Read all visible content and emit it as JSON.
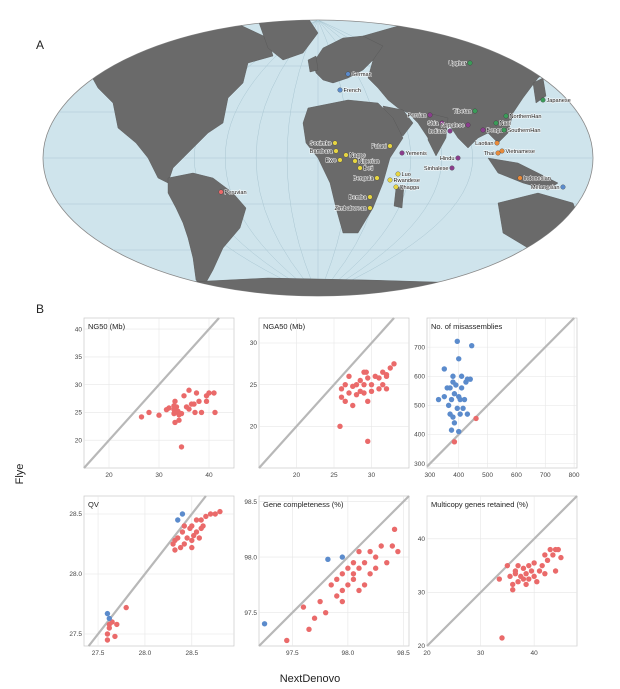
{
  "panel_labels": {
    "a": "A",
    "b": "B"
  },
  "axis_titles": {
    "y": "Flye",
    "x": "NextDenovo"
  },
  "colors": {
    "ocean": "#cfe4ec",
    "land": "#6a6a6a",
    "line": "#b5b5b5",
    "red": "#ea6a6a",
    "blue": "#5b8bcc",
    "yellow": "#e6d542",
    "green": "#3a9b58",
    "purple": "#8a3d8c",
    "orange": "#e88a3a",
    "diag": "#b8b8b8",
    "grid": "#e6e6e6"
  },
  "map_labels": [
    {
      "name": "German",
      "color": "blue"
    },
    {
      "name": "French",
      "color": "blue"
    },
    {
      "name": "Uyghur",
      "color": "green"
    },
    {
      "name": "Japanese",
      "color": "green"
    },
    {
      "name": "Tibetan",
      "color": "green"
    },
    {
      "name": "NorthernHan",
      "color": "green"
    },
    {
      "name": "Persian",
      "color": "purple"
    },
    {
      "name": "Shia",
      "color": "purple"
    },
    {
      "name": "Naxi",
      "color": "green"
    },
    {
      "name": "Nepalese",
      "color": "purple"
    },
    {
      "name": "Bengali",
      "color": "purple"
    },
    {
      "name": "SouthernHan",
      "color": "green"
    },
    {
      "name": "Indians",
      "color": "purple"
    },
    {
      "name": "Sonimke",
      "color": "yellow"
    },
    {
      "name": "Fulani",
      "color": "yellow"
    },
    {
      "name": "Yemenis",
      "color": "purple"
    },
    {
      "name": "Laotian",
      "color": "orange"
    },
    {
      "name": "Vietnamese",
      "color": "orange"
    },
    {
      "name": "Bambara",
      "color": "yellow"
    },
    {
      "name": "Nagos",
      "color": "yellow"
    },
    {
      "name": "Hindu",
      "color": "purple"
    },
    {
      "name": "Thai",
      "color": "orange"
    },
    {
      "name": "Ewe",
      "color": "yellow"
    },
    {
      "name": "Nigerian",
      "color": "yellow"
    },
    {
      "name": "Beti",
      "color": "yellow"
    },
    {
      "name": "Sinhalese",
      "color": "purple"
    },
    {
      "name": "Bengala",
      "color": "yellow"
    },
    {
      "name": "Luo",
      "color": "yellow"
    },
    {
      "name": "Rwandese",
      "color": "yellow"
    },
    {
      "name": "Chagga",
      "color": "yellow"
    },
    {
      "name": "Indonesian",
      "color": "orange"
    },
    {
      "name": "Peruvian",
      "color": "red"
    },
    {
      "name": "Melanesian",
      "color": "blue"
    },
    {
      "name": "Bemba",
      "color": "yellow"
    },
    {
      "name": "Zimbabwean",
      "color": "yellow"
    }
  ],
  "chart_data": [
    {
      "type": "scatter",
      "title": "NG50 (Mb)",
      "xlim": [
        15,
        45
      ],
      "ylim": [
        15,
        42
      ],
      "xticks": [
        "20",
        "30",
        "40"
      ],
      "yticks": [
        "20",
        "25",
        "30",
        "35",
        "40"
      ],
      "series": [
        {
          "color": "red",
          "points": [
            [
              26.5,
              24.2
            ],
            [
              28,
              25
            ],
            [
              30,
              24.5
            ],
            [
              31.5,
              25.5
            ],
            [
              32,
              25.8
            ],
            [
              33,
              25.5
            ],
            [
              33,
              26.2
            ],
            [
              33,
              24.8
            ],
            [
              33.2,
              27
            ],
            [
              33.5,
              26
            ],
            [
              33.8,
              25.2
            ],
            [
              34,
              24.6
            ],
            [
              34,
              23.6
            ],
            [
              34.5,
              24.8
            ],
            [
              35,
              28
            ],
            [
              35.5,
              26
            ],
            [
              36,
              29
            ],
            [
              36,
              25.6
            ],
            [
              36.5,
              26.5
            ],
            [
              37,
              26.5
            ],
            [
              37.2,
              25
            ],
            [
              37.5,
              28.5
            ],
            [
              38,
              27
            ],
            [
              38.5,
              25
            ],
            [
              39.5,
              28
            ],
            [
              39.5,
              27
            ],
            [
              40,
              28.5
            ],
            [
              41,
              28.5
            ],
            [
              41.2,
              25
            ],
            [
              34.5,
              18.8
            ],
            [
              33.2,
              23.2
            ]
          ]
        }
      ]
    },
    {
      "type": "scatter",
      "title": "NGA50 (Mb)",
      "xlim": [
        15,
        35
      ],
      "ylim": [
        15,
        33
      ],
      "xticks": [
        "20",
        "25",
        "30"
      ],
      "yticks": [
        "20",
        "25",
        "30"
      ],
      "series": [
        {
          "color": "red",
          "points": [
            [
              25.8,
              20
            ],
            [
              26,
              23.5
            ],
            [
              26,
              24.5
            ],
            [
              26.5,
              25
            ],
            [
              26.5,
              23
            ],
            [
              27,
              24
            ],
            [
              27,
              26
            ],
            [
              27.5,
              22.5
            ],
            [
              27.5,
              24.8
            ],
            [
              28,
              25
            ],
            [
              28,
              23.8
            ],
            [
              28.5,
              25.5
            ],
            [
              28.5,
              24.2
            ],
            [
              29,
              26.5
            ],
            [
              29,
              24
            ],
            [
              29,
              25
            ],
            [
              29.3,
              26.5
            ],
            [
              29.5,
              25.8
            ],
            [
              29.5,
              23
            ],
            [
              30,
              25
            ],
            [
              30,
              24.2
            ],
            [
              30.5,
              26
            ],
            [
              31,
              24.5
            ],
            [
              31,
              25.8
            ],
            [
              31.5,
              26.5
            ],
            [
              31.5,
              25
            ],
            [
              32,
              26.2
            ],
            [
              32,
              24.5
            ],
            [
              32.5,
              27
            ],
            [
              33,
              27.5
            ],
            [
              32,
              26
            ],
            [
              29.5,
              18.2
            ]
          ]
        }
      ]
    },
    {
      "type": "scatter",
      "title": "No. of misassemblies",
      "xlim": [
        290,
        810
      ],
      "ylim": [
        285,
        800
      ],
      "xticks": [
        "300",
        "400",
        "500",
        "600",
        "700",
        "800"
      ],
      "yticks": [
        "300",
        "400",
        "500",
        "600",
        "700"
      ],
      "series": [
        {
          "color": "blue",
          "points": [
            [
              330,
              520
            ],
            [
              350,
              530
            ],
            [
              350,
              625
            ],
            [
              360,
              560
            ],
            [
              365,
              500
            ],
            [
              370,
              470
            ],
            [
              370,
              560
            ],
            [
              375,
              520
            ],
            [
              375,
              415
            ],
            [
              380,
              580
            ],
            [
              380,
              600
            ],
            [
              385,
              440
            ],
            [
              385,
              540
            ],
            [
              390,
              570
            ],
            [
              395,
              490
            ],
            [
              395,
              720
            ],
            [
              400,
              660
            ],
            [
              400,
              530
            ],
            [
              405,
              470
            ],
            [
              405,
              520
            ],
            [
              410,
              600
            ],
            [
              410,
              560
            ],
            [
              415,
              490
            ],
            [
              420,
              520
            ],
            [
              425,
              580
            ],
            [
              430,
              590
            ],
            [
              430,
              470
            ],
            [
              440,
              590
            ],
            [
              445,
              705
            ],
            [
              380,
              460
            ],
            [
              400,
              410
            ]
          ]
        },
        {
          "color": "red",
          "points": [
            [
              385,
              375
            ],
            [
              460,
              455
            ]
          ]
        }
      ]
    },
    {
      "type": "scatter",
      "title": "QV",
      "xlim": [
        27.35,
        28.95
      ],
      "ylim": [
        27.4,
        28.65
      ],
      "xticks": [
        "27.5",
        "28.0",
        "28.5"
      ],
      "yticks": [
        "27.5",
        "28.0",
        "28.5"
      ],
      "series": [
        {
          "color": "red",
          "points": [
            [
              27.6,
              27.5
            ],
            [
              27.62,
              27.55
            ],
            [
              27.65,
              27.6
            ],
            [
              27.6,
              27.45
            ],
            [
              27.68,
              27.48
            ],
            [
              27.7,
              27.58
            ],
            [
              27.62,
              27.58
            ],
            [
              27.8,
              27.72
            ],
            [
              28.3,
              28.25
            ],
            [
              28.32,
              28.2
            ],
            [
              28.35,
              28.3
            ],
            [
              28.38,
              28.22
            ],
            [
              28.4,
              28.35
            ],
            [
              28.42,
              28.25
            ],
            [
              28.45,
              28.3
            ],
            [
              28.48,
              28.38
            ],
            [
              28.5,
              28.28
            ],
            [
              28.5,
              28.4
            ],
            [
              28.52,
              28.32
            ],
            [
              28.55,
              28.35
            ],
            [
              28.55,
              28.45
            ],
            [
              28.58,
              28.3
            ],
            [
              28.6,
              28.38
            ],
            [
              28.6,
              28.45
            ],
            [
              28.62,
              28.4
            ],
            [
              28.65,
              28.48
            ],
            [
              28.7,
              28.5
            ],
            [
              28.75,
              28.5
            ],
            [
              28.8,
              28.52
            ],
            [
              28.32,
              28.28
            ],
            [
              28.42,
              28.4
            ],
            [
              28.5,
              28.22
            ]
          ]
        },
        {
          "color": "blue",
          "points": [
            [
              27.6,
              27.67
            ],
            [
              27.62,
              27.63
            ],
            [
              28.35,
              28.45
            ],
            [
              28.4,
              28.5
            ]
          ]
        }
      ]
    },
    {
      "type": "scatter",
      "title": "Gene completeness (%)",
      "xlim": [
        97.2,
        98.55
      ],
      "ylim": [
        97.2,
        98.55
      ],
      "xticks": [
        "97.5",
        "98.0",
        "98.5"
      ],
      "yticks": [
        "97.5",
        "98.0",
        "98.5"
      ],
      "series": [
        {
          "color": "red",
          "points": [
            [
              97.45,
              97.25
            ],
            [
              97.6,
              97.55
            ],
            [
              97.65,
              97.35
            ],
            [
              97.7,
              97.45
            ],
            [
              97.75,
              97.6
            ],
            [
              97.8,
              97.5
            ],
            [
              97.85,
              97.75
            ],
            [
              97.9,
              97.8
            ],
            [
              97.9,
              97.65
            ],
            [
              97.95,
              97.85
            ],
            [
              97.95,
              97.7
            ],
            [
              98,
              97.9
            ],
            [
              98,
              97.75
            ],
            [
              98.05,
              97.85
            ],
            [
              98.05,
              97.95
            ],
            [
              98.1,
              97.9
            ],
            [
              98.1,
              98.05
            ],
            [
              98.15,
              97.75
            ],
            [
              98.15,
              97.95
            ],
            [
              98.2,
              97.85
            ],
            [
              98.2,
              98.05
            ],
            [
              98.25,
              97.9
            ],
            [
              98.25,
              98
            ],
            [
              98.3,
              98.1
            ],
            [
              98.35,
              97.95
            ],
            [
              98.4,
              98.1
            ],
            [
              98.42,
              98.25
            ],
            [
              98.45,
              98.05
            ],
            [
              98.05,
              97.8
            ],
            [
              97.95,
              97.6
            ],
            [
              98.1,
              97.7
            ]
          ]
        },
        {
          "color": "blue",
          "points": [
            [
              97.25,
              97.4
            ],
            [
              97.82,
              97.98
            ],
            [
              97.95,
              98.0
            ]
          ]
        }
      ]
    },
    {
      "type": "scatter",
      "title": "Multicopy genes retained (%)",
      "xlim": [
        20,
        48
      ],
      "ylim": [
        20,
        48
      ],
      "xticks": [
        "20",
        "30",
        "40"
      ],
      "yticks": [
        "20",
        "30",
        "40"
      ],
      "series": [
        {
          "color": "red",
          "points": [
            [
              33.5,
              32.5
            ],
            [
              34,
              21.5
            ],
            [
              35,
              35
            ],
            [
              35.5,
              33
            ],
            [
              36,
              31.5
            ],
            [
              36,
              30.5
            ],
            [
              36.5,
              34
            ],
            [
              37,
              32
            ],
            [
              37,
              35
            ],
            [
              37.5,
              33
            ],
            [
              38,
              32.5
            ],
            [
              38,
              34.5
            ],
            [
              38.5,
              31.5
            ],
            [
              38.5,
              33.5
            ],
            [
              39,
              35
            ],
            [
              39,
              32.5
            ],
            [
              39.5,
              34
            ],
            [
              40,
              33
            ],
            [
              40,
              35.5
            ],
            [
              40.5,
              32
            ],
            [
              41,
              34
            ],
            [
              41.5,
              35
            ],
            [
              42,
              37
            ],
            [
              42,
              33.5
            ],
            [
              42.5,
              36
            ],
            [
              43,
              38
            ],
            [
              43.5,
              37
            ],
            [
              44,
              38
            ],
            [
              44.5,
              38
            ],
            [
              45,
              36.5
            ],
            [
              44,
              34
            ],
            [
              36.5,
              33.5
            ]
          ]
        }
      ]
    }
  ]
}
